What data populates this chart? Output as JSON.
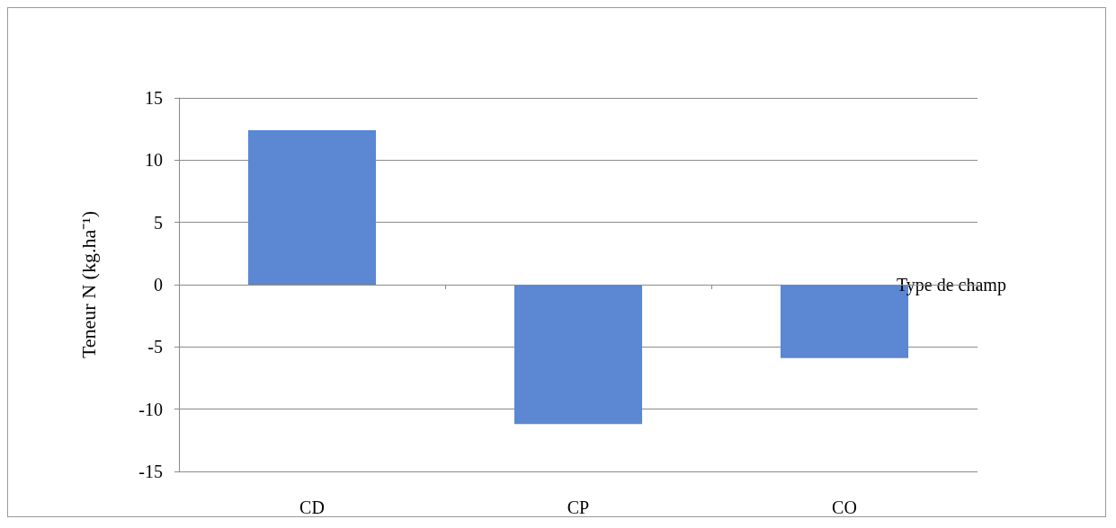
{
  "chart_data": {
    "type": "bar",
    "xlabel": "Type de champ",
    "ylabel": "Teneur N (kg.ha⁻¹)",
    "categories": [
      "CD",
      "CP",
      "CO"
    ],
    "values": [
      12.4,
      -11.2,
      -5.9
    ],
    "color": "#5b87d3",
    "ylim": [
      -15,
      15
    ],
    "yticks": [
      -15,
      -10,
      -5,
      0,
      5,
      10,
      15
    ],
    "grid": "y"
  }
}
